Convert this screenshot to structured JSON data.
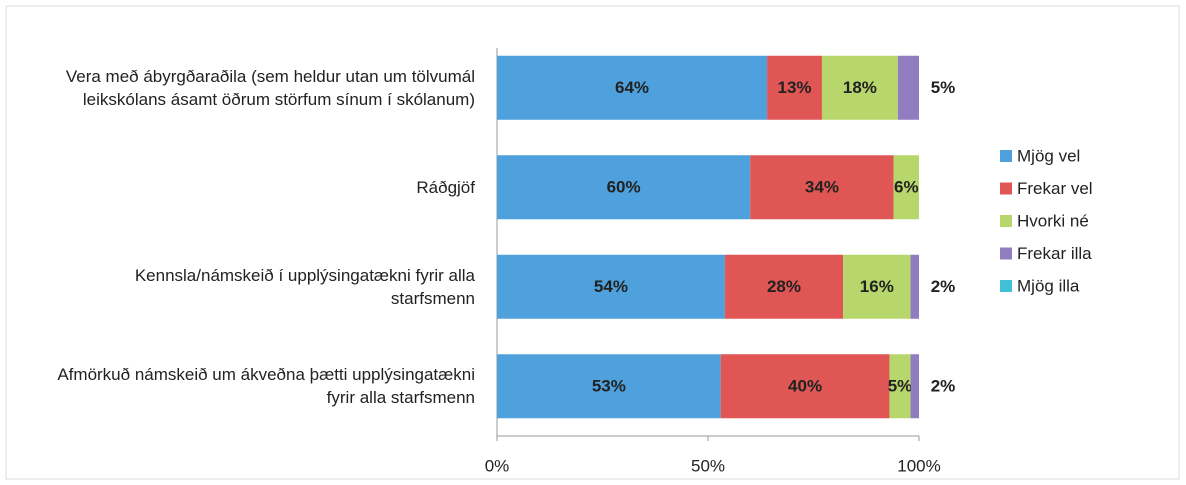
{
  "chart_data": {
    "type": "stacked_bar_horizontal",
    "categories": [
      "Vera með ábyrgðaraðila (sem heldur utan um tölvumál leikskólans ásamt öðrum störfum sínum í skólanum)",
      "Ráðgjöf",
      "Kennsla/námskeið í upplýsingatækni fyrir alla starfsmenn",
      "Afmörkuð námskeið um ákveðna þætti upplýsingatækni fyrir alla starfsmenn"
    ],
    "series": [
      {
        "name": "Mjög vel",
        "color": "#4ea1dc",
        "values": [
          64,
          60,
          54,
          53
        ],
        "value_labels": [
          "64%",
          "60%",
          "54%",
          "53%"
        ]
      },
      {
        "name": "Frekar vel",
        "color": "#df5654",
        "values": [
          13,
          34,
          28,
          40
        ],
        "value_labels": [
          "13%",
          "34%",
          "28%",
          "40%"
        ]
      },
      {
        "name": "Hvorki né",
        "color": "#b7d76c",
        "values": [
          18,
          6,
          16,
          5
        ],
        "value_labels": [
          "18%",
          "6%",
          "16%",
          "5%"
        ]
      },
      {
        "name": "Frekar illa",
        "color": "#8f7dc0",
        "values": [
          5,
          0,
          2,
          2
        ],
        "value_labels": [
          "5%",
          null,
          "2%",
          "2%"
        ]
      },
      {
        "name": "Mjög illa",
        "color": "#41bfd6",
        "values": [
          0,
          0,
          0,
          0
        ],
        "value_labels": [
          null,
          null,
          null,
          null
        ]
      }
    ],
    "xlim": [
      0,
      100
    ],
    "xticks": [
      {
        "value": 0,
        "label": "0%"
      },
      {
        "value": 50,
        "label": "50%"
      },
      {
        "value": 100,
        "label": "100%"
      }
    ],
    "legend": "right"
  }
}
